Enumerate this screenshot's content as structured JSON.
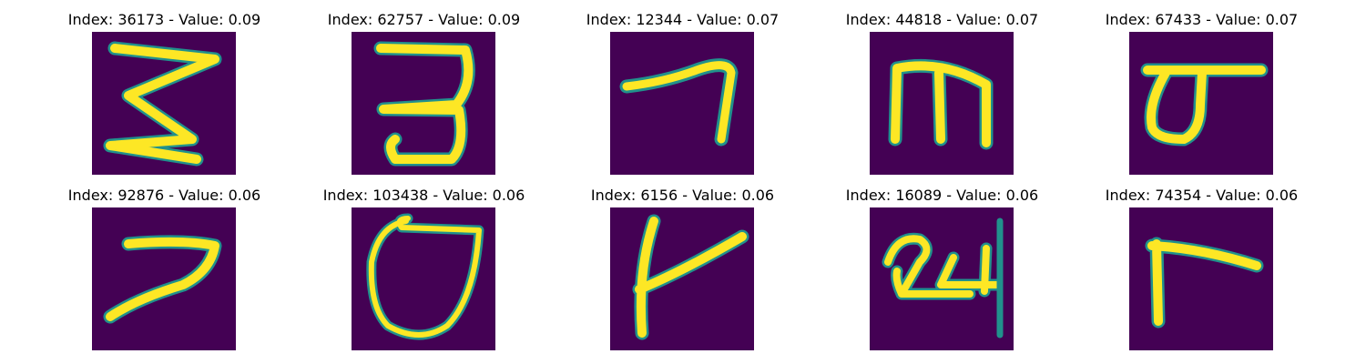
{
  "cmap": {
    "background": "#440154",
    "edge": "#21918c",
    "core": "#fde725"
  },
  "panels": [
    {
      "title": "Index: 36173 - Value: 0.09",
      "glyph": "digit-3-z"
    },
    {
      "title": "Index: 62757 - Value: 0.09",
      "glyph": "digit-3"
    },
    {
      "title": "Index: 12344 - Value: 0.07",
      "glyph": "digit-7-flat"
    },
    {
      "title": "Index: 44818 - Value: 0.07",
      "glyph": "letter-m"
    },
    {
      "title": "Index: 67433 - Value: 0.07",
      "glyph": "sigma"
    },
    {
      "title": "Index: 92876 - Value: 0.06",
      "glyph": "digit-7"
    },
    {
      "title": "Index: 103438 - Value: 0.06",
      "glyph": "loop-shield"
    },
    {
      "title": "Index: 6156 - Value: 0.06",
      "glyph": "letter-t"
    },
    {
      "title": "Index: 16089 - Value: 0.06",
      "glyph": "scribble-24"
    },
    {
      "title": "Index: 74354 - Value: 0.06",
      "glyph": "letter-r"
    }
  ]
}
